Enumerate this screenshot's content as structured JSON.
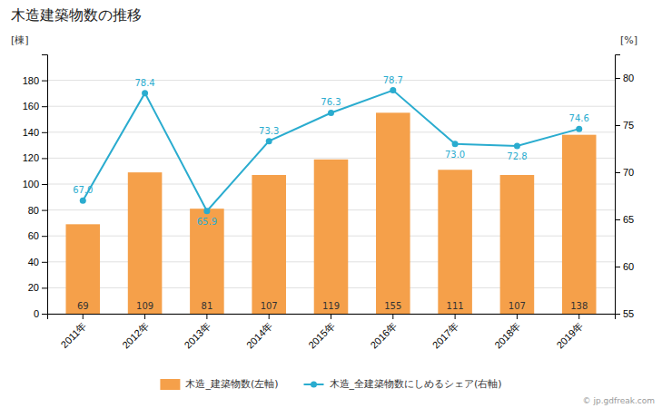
{
  "chart_data": {
    "type": "bar",
    "title": "木造建築物数の推移",
    "categories": [
      "2011年",
      "2012年",
      "2013年",
      "2014年",
      "2015年",
      "2016年",
      "2017年",
      "2018年",
      "2019年"
    ],
    "series": [
      {
        "name": "木造_建築物数(左軸)",
        "type": "bar",
        "color": "#f5a04a",
        "values": [
          69,
          109,
          81,
          107,
          119,
          155,
          111,
          107,
          138
        ]
      },
      {
        "name": "木造_全建築物数にしめるシェア(右軸)",
        "type": "line",
        "axis": "y2",
        "color": "#2aaccf",
        "marker": "circle",
        "values": [
          67.0,
          78.4,
          65.9,
          73.3,
          76.3,
          78.7,
          73.0,
          72.8,
          74.6
        ],
        "value_labels": [
          "67.0",
          "78.4",
          "65.9",
          "73.3",
          "76.3",
          "78.7",
          "73.0",
          "72.8",
          "74.6"
        ]
      }
    ],
    "ylabel": "[棟]",
    "y2label": "[%]",
    "ylim": [
      0,
      200
    ],
    "yticks": [
      0,
      20,
      40,
      60,
      80,
      100,
      120,
      140,
      160,
      180
    ],
    "y2lim": [
      55.0,
      82.5
    ],
    "y2ticks": [
      55,
      60,
      65,
      70,
      75,
      80
    ],
    "grid": true,
    "data_labels": true,
    "legend": "bottom",
    "annotations": [
      "© jp.gdfreak.com"
    ]
  }
}
